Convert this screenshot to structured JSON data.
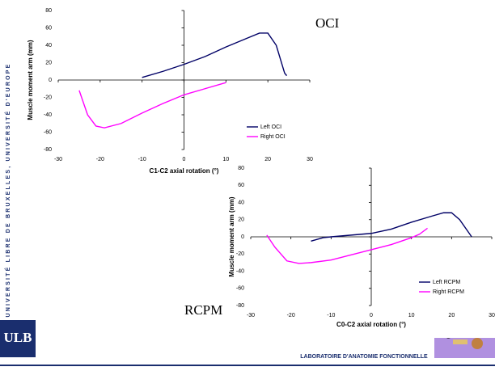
{
  "slide": {
    "side_text": "UNIVERSITÉ LIBRE DE BRUXELLES, UNIVERSITÉ D'EUROPE",
    "logo": "ULB",
    "footer": "LABORATOIRE D'ANATOMIE FONCTIONNELLE"
  },
  "chart_data": [
    {
      "type": "line",
      "title": "OCI",
      "x_label": "C1-C2 axial rotation (°)",
      "y_label": "Muscle moment arm (mm)",
      "xlim": [
        -30,
        30
      ],
      "xticks": [
        -30,
        -20,
        -10,
        0,
        10,
        20,
        30
      ],
      "ylim": [
        -80,
        80
      ],
      "yticks": [
        -80,
        -60,
        -40,
        -20,
        0,
        20,
        40,
        60,
        80
      ],
      "legend": "lower right",
      "series": [
        {
          "name": "Left OCI",
          "color": "#000066",
          "x": [
            -10,
            -5,
            0,
            5,
            10,
            15,
            18,
            20,
            22,
            24,
            24.5
          ],
          "values": [
            3,
            10,
            18,
            27,
            38,
            48,
            54,
            54,
            40,
            8,
            5
          ]
        },
        {
          "name": "Right OCI",
          "color": "#ff00ff",
          "x": [
            -25,
            -23,
            -21,
            -19,
            -15,
            -10,
            -5,
            0,
            5,
            10
          ],
          "values": [
            -12,
            -40,
            -53,
            -55,
            -50,
            -38,
            -27,
            -17,
            -10,
            -3
          ]
        }
      ]
    },
    {
      "type": "line",
      "title": "RCPM",
      "x_label": "C0-C2 axial rotation (°)",
      "y_label": "Muscle moment arm (mm)",
      "xlim": [
        -30,
        30
      ],
      "xticks": [
        -30,
        -20,
        -10,
        0,
        10,
        20,
        30
      ],
      "ylim": [
        -80,
        80
      ],
      "yticks": [
        -80,
        -60,
        -40,
        -20,
        0,
        20,
        40,
        60,
        80
      ],
      "legend": "lower right",
      "series": [
        {
          "name": "Left RCPM",
          "color": "#000066",
          "x": [
            -15,
            -12,
            -10,
            -5,
            0,
            5,
            10,
            15,
            18,
            20,
            22,
            25
          ],
          "values": [
            -5,
            -1,
            0,
            2,
            4,
            9,
            17,
            24,
            28,
            28,
            20,
            0
          ]
        },
        {
          "name": "Right RCPM",
          "color": "#ff00ff",
          "x": [
            -26,
            -24,
            -21,
            -18,
            -15,
            -10,
            -5,
            0,
            5,
            10,
            12,
            14
          ],
          "values": [
            2,
            -12,
            -28,
            -31,
            -30,
            -27,
            -21,
            -15,
            -9,
            -1,
            3,
            10
          ]
        }
      ]
    }
  ]
}
